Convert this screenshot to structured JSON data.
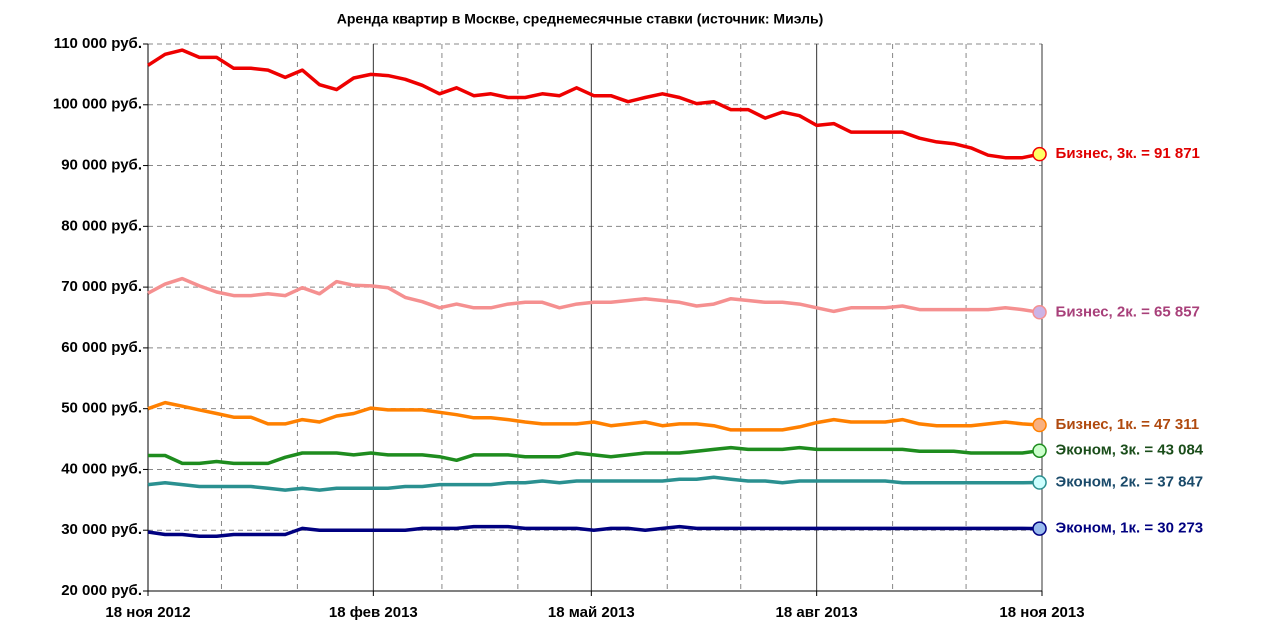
{
  "chart_data": {
    "type": "line",
    "title": "Аренда квартир в Москве, среднемесячные ставки (источник: Миэль)",
    "x": [
      "2012-11-18",
      "2012-11-25",
      "2012-12-02",
      "2012-12-09",
      "2012-12-16",
      "2012-12-23",
      "2012-12-30",
      "2013-01-06",
      "2013-01-13",
      "2013-01-20",
      "2013-01-27",
      "2013-02-03",
      "2013-02-10",
      "2013-02-17",
      "2013-02-24",
      "2013-03-03",
      "2013-03-10",
      "2013-03-17",
      "2013-03-24",
      "2013-03-31",
      "2013-04-07",
      "2013-04-14",
      "2013-04-21",
      "2013-04-28",
      "2013-05-05",
      "2013-05-12",
      "2013-05-19",
      "2013-05-26",
      "2013-06-02",
      "2013-06-09",
      "2013-06-16",
      "2013-06-23",
      "2013-06-30",
      "2013-07-07",
      "2013-07-14",
      "2013-07-21",
      "2013-07-28",
      "2013-08-04",
      "2013-08-11",
      "2013-08-18",
      "2013-08-25",
      "2013-09-01",
      "2013-09-08",
      "2013-09-15",
      "2013-09-22",
      "2013-09-29",
      "2013-10-06",
      "2013-10-13",
      "2013-10-20",
      "2013-10-27",
      "2013-11-03",
      "2013-11-10",
      "2013-11-17"
    ],
    "xlim": [
      "2012-11-18",
      "2013-11-18"
    ],
    "xticks": [
      {
        "value": "2012-11-18",
        "label": "18 ноя 2012"
      },
      {
        "value": "2013-02-18",
        "label": "18 фев 2013"
      },
      {
        "value": "2013-05-18",
        "label": "18 май 2013"
      },
      {
        "value": "2013-08-18",
        "label": "18 авг 2013"
      },
      {
        "value": "2013-11-18",
        "label": "18 ноя 2013"
      }
    ],
    "xminorticks": [
      "2012-12-18",
      "2013-01-18",
      "2013-03-18",
      "2013-04-18",
      "2013-06-18",
      "2013-07-18",
      "2013-09-18",
      "2013-10-18"
    ],
    "ylim": [
      20000,
      110000
    ],
    "yticks": [
      {
        "value": 20000,
        "label": "20 000 руб."
      },
      {
        "value": 30000,
        "label": "30 000 руб."
      },
      {
        "value": 40000,
        "label": "40 000 руб."
      },
      {
        "value": 50000,
        "label": "50 000 руб."
      },
      {
        "value": 60000,
        "label": "60 000 руб."
      },
      {
        "value": 70000,
        "label": "70 000 руб."
      },
      {
        "value": 80000,
        "label": "80 000 руб."
      },
      {
        "value": 90000,
        "label": "90 000 руб."
      },
      {
        "value": 100000,
        "label": "100 000 руб."
      },
      {
        "value": 110000,
        "label": "110 000 руб."
      }
    ],
    "grid": true,
    "series": [
      {
        "name": "Бизнес, 3к. = 91 871",
        "color": "#ee0000",
        "marker_color": "#ffff66",
        "label_color": "#e00000",
        "values": [
          106500,
          108300,
          109000,
          107800,
          107800,
          106000,
          106000,
          105700,
          104500,
          105700,
          103300,
          102500,
          104400,
          105000,
          104800,
          104200,
          103200,
          101800,
          102800,
          101500,
          101800,
          101200,
          101200,
          101800,
          101500,
          102800,
          101500,
          101500,
          100500,
          101200,
          101800,
          101200,
          100200,
          100500,
          99200,
          99200,
          97800,
          98800,
          98200,
          96600,
          96900,
          95500,
          95500,
          95500,
          95500,
          94500,
          93900,
          93600,
          92900,
          91700,
          91300,
          91300,
          91871
        ]
      },
      {
        "name": "Бизнес, 2к. = 65 857",
        "color": "#f59090",
        "marker_color": "#ccb3e6",
        "label_color": "#a8407a",
        "values": [
          69000,
          70500,
          71400,
          70200,
          69200,
          68600,
          68600,
          68900,
          68600,
          69900,
          68900,
          70900,
          70300,
          70200,
          69900,
          68300,
          67600,
          66600,
          67200,
          66600,
          66600,
          67200,
          67500,
          67500,
          66600,
          67200,
          67500,
          67500,
          67800,
          68100,
          67800,
          67500,
          66900,
          67200,
          68100,
          67800,
          67500,
          67500,
          67200,
          66600,
          66000,
          66600,
          66600,
          66600,
          66900,
          66300,
          66300,
          66300,
          66300,
          66300,
          66600,
          66300,
          65857
        ]
      },
      {
        "name": "Бизнес, 1к. = 47 311",
        "color": "#ff8000",
        "marker_color": "#f8b080",
        "label_color": "#b04a0f",
        "values": [
          50000,
          51000,
          50400,
          49800,
          49200,
          48600,
          48600,
          47500,
          47500,
          48200,
          47800,
          48800,
          49200,
          50100,
          49800,
          49800,
          49800,
          49400,
          49000,
          48500,
          48500,
          48200,
          47800,
          47500,
          47500,
          47500,
          47800,
          47200,
          47500,
          47800,
          47200,
          47500,
          47500,
          47200,
          46500,
          46500,
          46500,
          46500,
          47000,
          47700,
          48200,
          47800,
          47800,
          47800,
          48200,
          47500,
          47200,
          47200,
          47200,
          47500,
          47800,
          47500,
          47311
        ]
      },
      {
        "name": "Эконом, 3к. = 43 084",
        "color": "#1e8c1e",
        "marker_color": "#ccffcc",
        "label_color": "#1a4d1a",
        "values": [
          42300,
          42300,
          41000,
          41000,
          41300,
          41000,
          41000,
          41000,
          42000,
          42700,
          42700,
          42700,
          42400,
          42700,
          42400,
          42400,
          42400,
          42100,
          41500,
          42400,
          42400,
          42400,
          42100,
          42100,
          42100,
          42700,
          42400,
          42100,
          42400,
          42700,
          42700,
          42700,
          43000,
          43300,
          43600,
          43300,
          43300,
          43300,
          43600,
          43300,
          43300,
          43300,
          43300,
          43300,
          43300,
          43000,
          43000,
          43000,
          42700,
          42700,
          42700,
          42700,
          43084
        ]
      },
      {
        "name": "Эконом, 2к. = 37 847",
        "color": "#2a9090",
        "marker_color": "#ccffff",
        "label_color": "#1a4a6a",
        "values": [
          37500,
          37800,
          37500,
          37200,
          37200,
          37200,
          37200,
          36900,
          36600,
          36900,
          36600,
          36900,
          36900,
          36900,
          36900,
          37200,
          37200,
          37500,
          37500,
          37500,
          37500,
          37800,
          37800,
          38100,
          37800,
          38100,
          38100,
          38100,
          38100,
          38100,
          38100,
          38400,
          38400,
          38700,
          38400,
          38100,
          38100,
          37800,
          38100,
          38100,
          38100,
          38100,
          38100,
          38100,
          37800,
          37800,
          37800,
          37800,
          37800,
          37800,
          37800,
          37800,
          37847
        ]
      },
      {
        "name": "Эконом, 1к. = 30 273",
        "color": "#000080",
        "marker_color": "#99bbee",
        "label_color": "#000080",
        "values": [
          29700,
          29300,
          29300,
          29000,
          29000,
          29300,
          29300,
          29300,
          29300,
          30300,
          30000,
          30000,
          30000,
          30000,
          30000,
          30000,
          30300,
          30300,
          30300,
          30600,
          30600,
          30600,
          30300,
          30300,
          30300,
          30300,
          30000,
          30300,
          30300,
          30000,
          30300,
          30600,
          30300,
          30300,
          30300,
          30300,
          30300,
          30300,
          30300,
          30300,
          30300,
          30300,
          30300,
          30300,
          30300,
          30300,
          30300,
          30300,
          30300,
          30300,
          30300,
          30300,
          30273
        ]
      }
    ]
  }
}
